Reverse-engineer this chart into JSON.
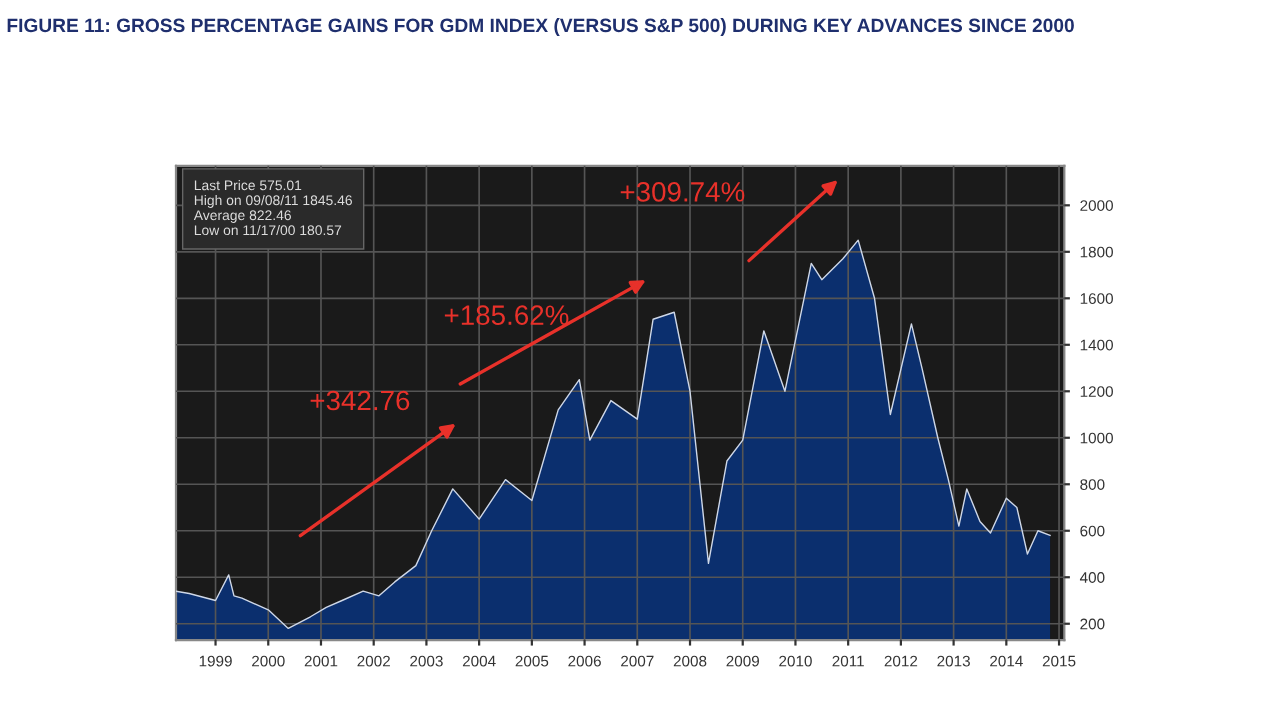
{
  "chart_data": {
    "type": "area",
    "title": "FIGURE 11: GROSS PERCENTAGE GAINS FOR GDM INDEX (VERSUS S&P 500) DURING KEY ADVANCES SINCE 2000",
    "x": [
      1998.75,
      1999.0,
      1999.5,
      1999.75,
      1999.85,
      2000.0,
      2000.5,
      2000.88,
      2001.3,
      2001.6,
      2001.9,
      2002.3,
      2002.6,
      2002.9,
      2003.3,
      2003.6,
      2004.0,
      2004.5,
      2005.0,
      2005.5,
      2006.0,
      2006.4,
      2006.6,
      2007.0,
      2007.5,
      2007.8,
      2008.2,
      2008.5,
      2008.85,
      2009.2,
      2009.5,
      2009.9,
      2010.3,
      2010.8,
      2011.0,
      2011.4,
      2011.69,
      2012.0,
      2012.3,
      2012.7,
      2012.9,
      2013.2,
      2013.4,
      2013.6,
      2013.75,
      2014.0,
      2014.2,
      2014.5,
      2014.7,
      2014.9,
      2015.1,
      2015.33
    ],
    "series": [
      {
        "color": "#0b2f6e",
        "values": [
          340,
          330,
          300,
          410,
          320,
          310,
          260,
          180,
          230,
          270,
          300,
          340,
          320,
          380,
          450,
          600,
          780,
          650,
          820,
          730,
          1120,
          1250,
          990,
          1160,
          1080,
          1510,
          1540,
          1200,
          460,
          900,
          990,
          1460,
          1200,
          1750,
          1680,
          1770,
          1850,
          1600,
          1100,
          1490,
          1300,
          1000,
          820,
          620,
          780,
          640,
          590,
          740,
          700,
          500,
          600,
          580
        ]
      }
    ],
    "xlim": [
      1998.75,
      2015.6
    ],
    "xticks": [
      {
        "value": 1999.5,
        "label": "1999"
      },
      {
        "value": 2000.5,
        "label": "2000"
      },
      {
        "value": 2001.5,
        "label": "2001"
      },
      {
        "value": 2002.5,
        "label": "2002"
      },
      {
        "value": 2003.5,
        "label": "2003"
      },
      {
        "value": 2004.5,
        "label": "2004"
      },
      {
        "value": 2005.5,
        "label": "2005"
      },
      {
        "value": 2006.5,
        "label": "2006"
      },
      {
        "value": 2007.5,
        "label": "2007"
      },
      {
        "value": 2008.5,
        "label": "2008"
      },
      {
        "value": 2009.5,
        "label": "2009"
      },
      {
        "value": 2010.5,
        "label": "2010"
      },
      {
        "value": 2011.5,
        "label": "2011"
      },
      {
        "value": 2012.5,
        "label": "2012"
      },
      {
        "value": 2013.5,
        "label": "2013"
      },
      {
        "value": 2014.5,
        "label": "2014"
      },
      {
        "value": 2015.5,
        "label": "2015"
      }
    ],
    "ylim": [
      130,
      2170
    ],
    "yticks": [
      200,
      400,
      600,
      800,
      1000,
      1200,
      1400,
      1600,
      1800,
      2000
    ],
    "grid": true,
    "annotations": [
      "+342.76",
      "+185.62%",
      "+309.74%",
      "Last Price 575.01",
      "High on 09/08/11 1845.46",
      "Average 822.46",
      "Low on 11/17/00 180.57"
    ]
  }
}
